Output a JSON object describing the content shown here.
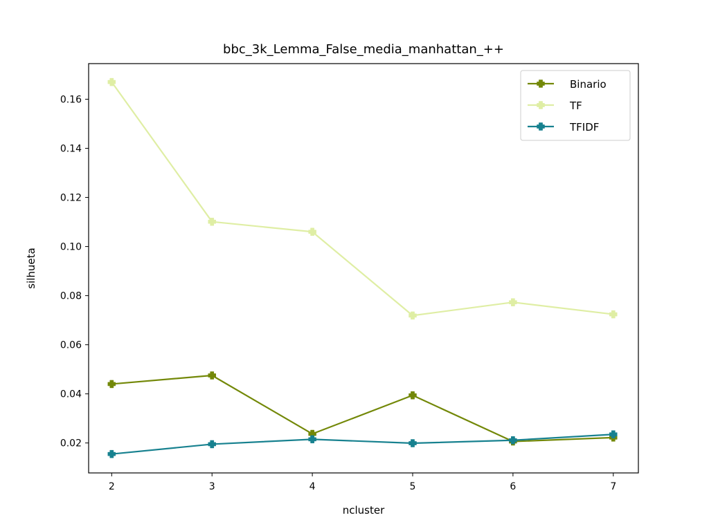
{
  "chart_data": {
    "type": "line",
    "title": "bbc_3k_Lemma_False_media_manhattan_++",
    "xlabel": "ncluster",
    "ylabel": "silhueta",
    "x": [
      2,
      3,
      4,
      5,
      6,
      7
    ],
    "xlim": [
      1.77,
      7.25
    ],
    "ylim": [
      0.0078,
      0.1745
    ],
    "xticks": [
      2,
      3,
      4,
      5,
      6,
      7
    ],
    "xtick_labels": [
      "2",
      "3",
      "4",
      "5",
      "6",
      "7"
    ],
    "yticks": [
      0.02,
      0.04,
      0.06,
      0.08,
      0.1,
      0.12,
      0.14,
      0.16
    ],
    "ytick_labels": [
      "0.02",
      "0.04",
      "0.06",
      "0.08",
      "0.10",
      "0.12",
      "0.14",
      "0.16"
    ],
    "grid": false,
    "legend_position": "top-right",
    "marker": "filled-plus",
    "series": [
      {
        "name": "Binario",
        "color": "#738808",
        "values": [
          0.044,
          0.0475,
          0.0237,
          0.0394,
          0.0206,
          0.0222
        ]
      },
      {
        "name": "TF",
        "color": "#dfeea4",
        "values": [
          0.167,
          0.1101,
          0.106,
          0.0719,
          0.0773,
          0.0724
        ]
      },
      {
        "name": "TFIDF",
        "color": "#17818f",
        "values": [
          0.0155,
          0.0195,
          0.0215,
          0.0199,
          0.0211,
          0.0235
        ]
      }
    ]
  }
}
